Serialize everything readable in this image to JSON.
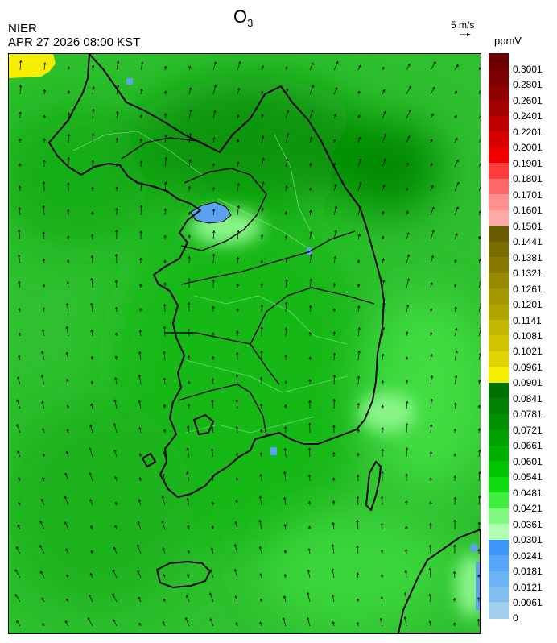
{
  "header": {
    "title_main": "O",
    "title_sub": "3",
    "agency": "NIER",
    "datetime": "APR 27 2026 08:00 KST",
    "wind_reference": "5 m/s"
  },
  "legend": {
    "unit": "ppmV",
    "labels_top_to_bottom": [
      "0.3001",
      "0.2801",
      "0.2601",
      "0.2401",
      "0.2201",
      "0.2001",
      "0.1901",
      "0.1801",
      "0.1701",
      "0.1601",
      "0.1501",
      "0.1441",
      "0.1381",
      "0.1321",
      "0.1261",
      "0.1201",
      "0.1141",
      "0.1081",
      "0.1021",
      "0.0961",
      "0.0901",
      "0.0841",
      "0.0781",
      "0.0721",
      "0.0661",
      "0.0601",
      "0.0541",
      "0.0481",
      "0.0421",
      "0.0361",
      "0.0301",
      "0.0241",
      "0.0181",
      "0.0121",
      "0.0061",
      "0"
    ],
    "colors_top_to_bottom": [
      "#6b0000",
      "#7d0000",
      "#8f0000",
      "#a30000",
      "#bd0000",
      "#d90000",
      "#f20000",
      "#ff3b3b",
      "#ff6868",
      "#ff9090",
      "#ffa8a8",
      "#6a5c00",
      "#7a6c00",
      "#887a00",
      "#968800",
      "#a59700",
      "#b3a500",
      "#c3b600",
      "#d0c300",
      "#e0d300",
      "#f4ee00",
      "#007000",
      "#008000",
      "#009000",
      "#00a000",
      "#00b000",
      "#00c400",
      "#10dc10",
      "#40ef40",
      "#80fb80",
      "#b0ffb0",
      "#3c96fa",
      "#55a6f8",
      "#6ab3f4",
      "#80bff0",
      "#a0d0ee"
    ]
  },
  "map": {
    "field": "O3 concentration with wind vectors",
    "dominant_level_ppmv": "0.0421-0.0601",
    "color_key": {
      "sea": "#2ec02e",
      "land": "#14b414",
      "northeast_high": "#078c07",
      "low_blue": "#5aa2f0",
      "very_low_light": "#a0ff9c",
      "yellow_patch": "#f4ee00"
    }
  }
}
